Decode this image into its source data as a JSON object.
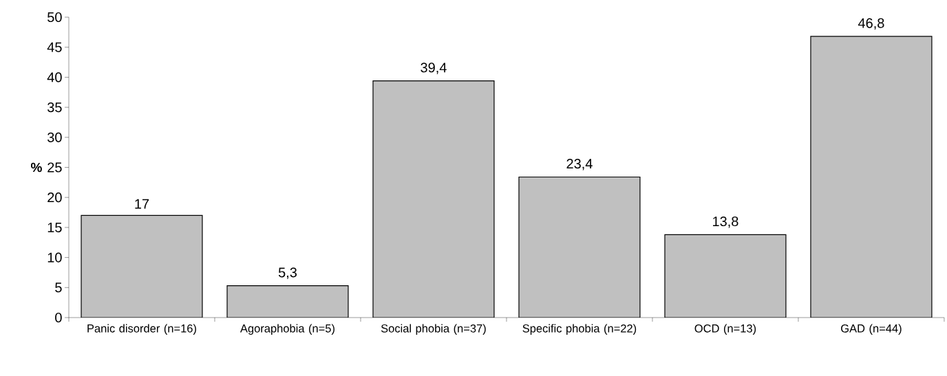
{
  "chart_data": {
    "type": "bar",
    "ylabel": "%",
    "categories": [
      "Panic disorder (n=16)",
      "Agoraphobia (n=5)",
      "Social phobia (n=37)",
      "Specific phobia (n=22)",
      "OCD (n=13)",
      "GAD (n=44)"
    ],
    "values": [
      17,
      5.3,
      39.4,
      23.4,
      13.8,
      46.8
    ],
    "value_labels": [
      "17",
      "5,3",
      "39,4",
      "23,4",
      "13,8",
      "46,8"
    ],
    "color": "#c0c0c0",
    "ylim": [
      0,
      50
    ],
    "yticks": [
      0,
      5,
      10,
      15,
      20,
      25,
      30,
      35,
      40,
      45,
      50
    ]
  }
}
